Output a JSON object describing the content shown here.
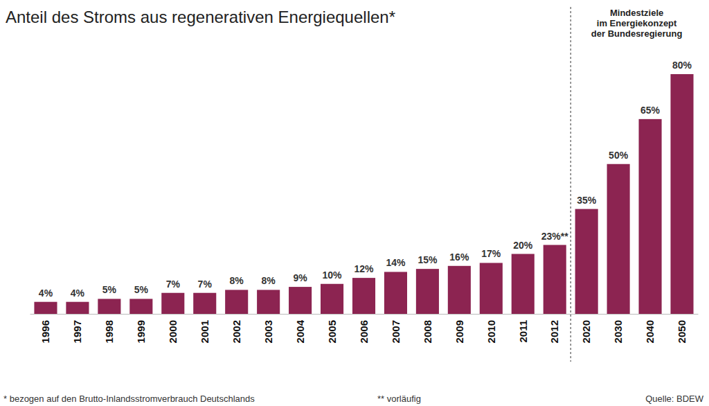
{
  "chart_data": {
    "type": "bar",
    "title": "Anteil des Stroms aus regenerativen Energiequellen*",
    "categories": [
      "1996",
      "1997",
      "1998",
      "1999",
      "2000",
      "2001",
      "2002",
      "2003",
      "2004",
      "2005",
      "2006",
      "2007",
      "2008",
      "2009",
      "2010",
      "2011",
      "2012",
      "2020",
      "2030",
      "2040",
      "2050"
    ],
    "values": [
      4,
      4,
      5,
      5,
      7,
      7,
      8,
      8,
      9,
      10,
      12,
      14,
      15,
      16,
      17,
      20,
      23,
      35,
      50,
      65,
      80
    ],
    "value_labels": [
      "4%",
      "4%",
      "5%",
      "5%",
      "7%",
      "7%",
      "8%",
      "8%",
      "9%",
      "10%",
      "12%",
      "14%",
      "15%",
      "16%",
      "17%",
      "20%",
      "23%**",
      "35%",
      "50%",
      "65%",
      "80%"
    ],
    "color": "#8c2451",
    "ylim": [
      0,
      80
    ],
    "data_labels": true,
    "tick_labels": "x",
    "grid": false,
    "annotation": [
      "Mindestziele",
      "im Energiekonzept",
      "der Bundesregierung"
    ],
    "notes": [
      "* bezogen auf den Brutto-Inlandsstromverbrauch Deutschlands",
      "** vorläufig"
    ],
    "source": "Quelle: BDEW"
  }
}
